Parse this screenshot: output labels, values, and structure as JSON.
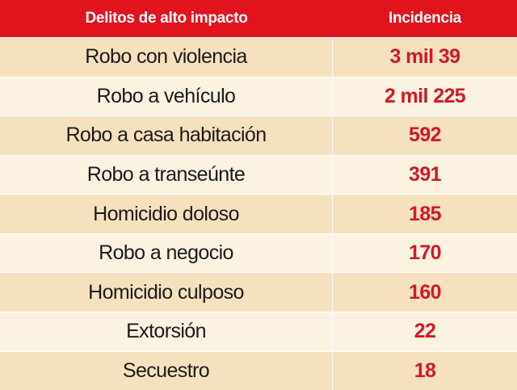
{
  "chart_data": {
    "type": "table",
    "columns": [
      "Delitos de alto impacto",
      "Incidencia"
    ],
    "rows": [
      {
        "delito": "Robo con violencia",
        "incidencia": "3 mil 39",
        "value": 3039
      },
      {
        "delito": "Robo a vehículo",
        "incidencia": "2 mil 225",
        "value": 2225
      },
      {
        "delito": "Robo a casa habitación",
        "incidencia": "592",
        "value": 592
      },
      {
        "delito": "Robo a transeúnte",
        "incidencia": "391",
        "value": 391
      },
      {
        "delito": "Homicidio doloso",
        "incidencia": "185",
        "value": 185
      },
      {
        "delito": "Robo a negocio",
        "incidencia": "170",
        "value": 170
      },
      {
        "delito": "Homicidio culposo",
        "incidencia": "160",
        "value": 160
      },
      {
        "delito": "Extorsión",
        "incidencia": "22",
        "value": 22
      },
      {
        "delito": "Secuestro",
        "incidencia": "18",
        "value": 18
      }
    ],
    "colors": {
      "header_bg": "#e1141e",
      "header_text": "#ffffff",
      "row_odd": "#f6e1bf",
      "row_even": "#fbf2e2",
      "value_text": "#d11a22",
      "name_text": "#1b1b1b"
    }
  }
}
